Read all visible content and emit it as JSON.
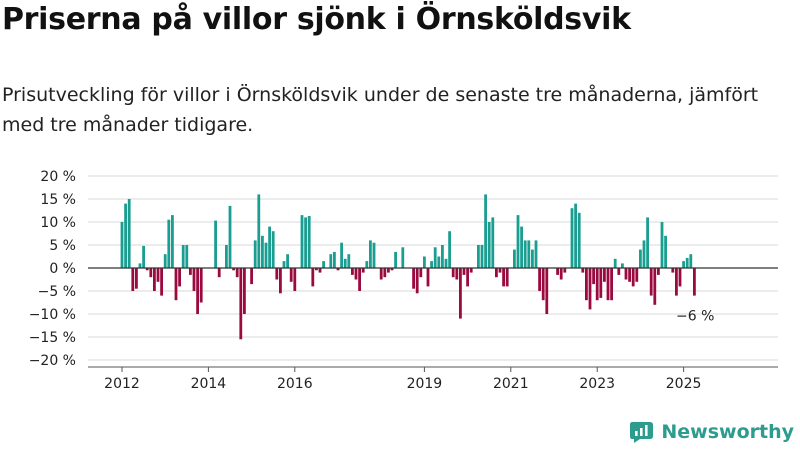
{
  "title": "Priserna på villor sjönk i Örnsköldsvik",
  "subtitle": "Prisutveckling för villor i Örnsköldsvik under de senaste tre månaderna, jämfört med tre månader tidigare.",
  "brand": {
    "name": "Newsworthy",
    "color": "#2c9c8f"
  },
  "colors": {
    "positive": "#1a9e91",
    "negative": "#9b0a3f",
    "grid": "#d9d9d9",
    "zero_line": "#333333"
  },
  "chart_data": {
    "type": "bar",
    "x_start": "2012-01",
    "x_end": "2025-02",
    "x_unit": "month",
    "yticks": [
      20,
      15,
      10,
      5,
      0,
      -5,
      -10,
      -15,
      -20
    ],
    "ytick_labels": [
      "20 %",
      "15 %",
      "10 %",
      "5 %",
      "0 %",
      "−5 %",
      "−10 %",
      "−15 %",
      "−20 %"
    ],
    "ylim": [
      -20,
      20
    ],
    "xtick_labels": [
      {
        "year": 2012,
        "label": "2012"
      },
      {
        "year": 2014,
        "label": "2014"
      },
      {
        "year": 2016,
        "label": "2016"
      },
      {
        "year": 2019,
        "label": "2019"
      },
      {
        "year": 2021,
        "label": "2021"
      },
      {
        "year": 2023,
        "label": "2023"
      },
      {
        "year": 2025,
        "label": "2025"
      }
    ],
    "values": [
      10,
      14,
      15,
      -5,
      -4.5,
      1,
      4.8,
      -0.5,
      -2,
      -5,
      -3,
      -6,
      3,
      10.5,
      11.5,
      -7,
      -4,
      5,
      5,
      -1.5,
      -5,
      -10,
      -7.5,
      0,
      0,
      0,
      10.3,
      -2,
      0,
      5,
      13.5,
      -0.5,
      -2,
      -15.5,
      -10,
      0,
      -3.5,
      6,
      16,
      7,
      5.5,
      9,
      8,
      -2.5,
      -5.5,
      1.5,
      3,
      -3,
      -5,
      0,
      11.5,
      11,
      11.3,
      -4,
      -0.5,
      -1,
      1.5,
      0,
      3,
      3.5,
      -0.5,
      5.5,
      2,
      3,
      -1.5,
      -2.5,
      -5,
      -1,
      1.5,
      6,
      5.5,
      0,
      -2.5,
      -2,
      -1,
      -0.5,
      3.5,
      0,
      4.5,
      0,
      0,
      -4.5,
      -5.5,
      -2,
      2.5,
      -4,
      1.5,
      4.5,
      2.5,
      5,
      2,
      8,
      -2,
      -2.5,
      -11,
      -1.5,
      -4,
      -1,
      0,
      5,
      5,
      16,
      10,
      11,
      -2,
      -1,
      -4,
      -4,
      0,
      4,
      11.5,
      9,
      6,
      6,
      4,
      6,
      -5,
      -7,
      -10,
      0,
      0,
      -1.5,
      -2.5,
      -1,
      0,
      13,
      14,
      12,
      -1,
      -7,
      -9,
      -3.5,
      -7,
      -6.5,
      -3,
      -7,
      -7,
      2,
      -1.5,
      1,
      -2.5,
      -3,
      -4,
      -3,
      4,
      6,
      11,
      -6,
      -8,
      -1.5,
      10,
      7,
      0,
      -1,
      -6,
      -4,
      1.5,
      2.2,
      3,
      -6
    ],
    "annotation": {
      "text": "−6 %",
      "value": -6
    }
  }
}
